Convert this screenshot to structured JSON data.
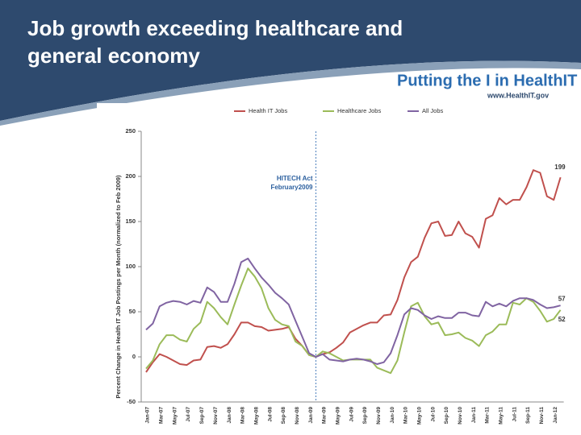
{
  "slide": {
    "title": "Job growth exceeding healthcare and general economy",
    "logo": "Putting the I in HealthIT",
    "url": "www.HealthIT.gov"
  },
  "chart_data": {
    "type": "line",
    "y_label": "Percent Change in Health IT Job Postings per Month (normalized to Feb 2009)",
    "annotation": [
      "HITECH Act",
      "February2009"
    ],
    "categories": [
      "Jan-07",
      null,
      "Mar-07",
      null,
      "May-07",
      null,
      "Jul-07",
      null,
      "Sep-07",
      null,
      "Nov-07",
      null,
      "Jan-08",
      null,
      "Mar-08",
      null,
      "May-08",
      null,
      "Jul-08",
      null,
      "Sep-08",
      null,
      "Nov-08",
      null,
      "Jan-09",
      null,
      "Mar-09",
      null,
      "May-09",
      null,
      "Jul-09",
      null,
      "Sep-09",
      null,
      "Nov-09",
      null,
      "Jan-10",
      null,
      "Mar-10",
      null,
      "May-10",
      null,
      "Jul-10",
      null,
      "Sep-10",
      null,
      "Nov-10",
      null,
      "Jan-11",
      null,
      "Mar-11",
      null,
      "May-11",
      null,
      "Jul-11",
      null,
      "Sep-11",
      null,
      "Nov-11",
      null,
      "Jan-12",
      null
    ],
    "series": [
      {
        "name": "Health IT Jobs",
        "color": "#c0504d",
        "values": [
          -17,
          -6,
          3,
          0,
          -4,
          -8,
          -9,
          -4,
          -3,
          11,
          12,
          10,
          14,
          25,
          38,
          38,
          34,
          33,
          29,
          30,
          31,
          33,
          20,
          12,
          2,
          0,
          3,
          5,
          10,
          16,
          27,
          31,
          35,
          38,
          38,
          46,
          47,
          63,
          88,
          105,
          111,
          132,
          148,
          150,
          134,
          135,
          150,
          137,
          133,
          121,
          153,
          157,
          176,
          169,
          174,
          174,
          188,
          207,
          204,
          178,
          174,
          199
        ]
      },
      {
        "name": "Healthcare Jobs",
        "color": "#9bbb59",
        "values": [
          -13,
          -4,
          14,
          24,
          24,
          19,
          17,
          31,
          38,
          61,
          54,
          44,
          36,
          58,
          79,
          98,
          89,
          76,
          54,
          41,
          36,
          34,
          17,
          12,
          2,
          0,
          6,
          4,
          0,
          -4,
          -3,
          -3,
          -3,
          -3,
          -12,
          -15,
          -18,
          -4,
          27,
          56,
          60,
          45,
          36,
          38,
          24,
          25,
          27,
          21,
          18,
          12,
          24,
          28,
          36,
          36,
          60,
          58,
          65,
          61,
          51,
          39,
          42,
          52
        ]
      },
      {
        "name": "All Jobs",
        "color": "#8064a2",
        "values": [
          30,
          37,
          56,
          60,
          62,
          61,
          58,
          62,
          60,
          77,
          72,
          61,
          61,
          81,
          105,
          109,
          98,
          88,
          80,
          71,
          65,
          58,
          40,
          22,
          4,
          0,
          3,
          -3,
          -4,
          -5,
          -3,
          -2,
          -3,
          -5,
          -8,
          -6,
          4,
          24,
          47,
          54,
          52,
          46,
          42,
          45,
          43,
          43,
          49,
          49,
          46,
          45,
          61,
          56,
          59,
          56,
          62,
          65,
          65,
          63,
          58,
          54,
          55,
          57
        ]
      }
    ],
    "ylim": [
      -50,
      250
    ],
    "yticks": [
      -50,
      0,
      50,
      100,
      150,
      200,
      250
    ]
  }
}
